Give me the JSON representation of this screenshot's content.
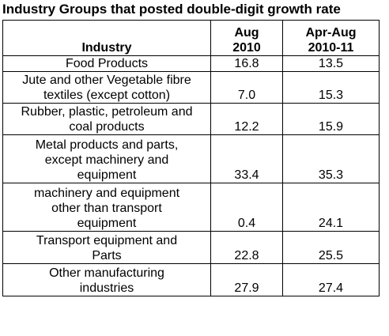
{
  "title": "Industry Groups that posted double-digit growth rate",
  "table": {
    "headers": {
      "industry": "Industry",
      "aug_line1": "Aug",
      "aug_line2": "2010",
      "aprAug_line1": "Apr-Aug",
      "aprAug_line2": "2010-11"
    },
    "rows": [
      {
        "industry_lines": [
          "Food Products"
        ],
        "aug_2010": "16.8",
        "apr_aug_2010_11": "13.5"
      },
      {
        "industry_lines": [
          "Jute and other Vegetable fibre",
          "textiles (except cotton)"
        ],
        "aug_2010": "7.0",
        "apr_aug_2010_11": "15.3"
      },
      {
        "industry_lines": [
          "Rubber, plastic, petroleum and",
          "coal products"
        ],
        "aug_2010": "12.2",
        "apr_aug_2010_11": "15.9"
      },
      {
        "industry_lines": [
          "Metal products and parts,",
          "except machinery and",
          "equipment"
        ],
        "aug_2010": "33.4",
        "apr_aug_2010_11": "35.3"
      },
      {
        "industry_lines": [
          "machinery and equipment",
          "other than transport",
          "equipment"
        ],
        "aug_2010": "0.4",
        "apr_aug_2010_11": "24.1"
      },
      {
        "industry_lines": [
          "Transport equipment and",
          "Parts"
        ],
        "aug_2010": "22.8",
        "apr_aug_2010_11": "25.5"
      },
      {
        "industry_lines": [
          "Other manufacturing",
          "industries"
        ],
        "aug_2010": "27.9",
        "apr_aug_2010_11": "27.4"
      }
    ]
  }
}
